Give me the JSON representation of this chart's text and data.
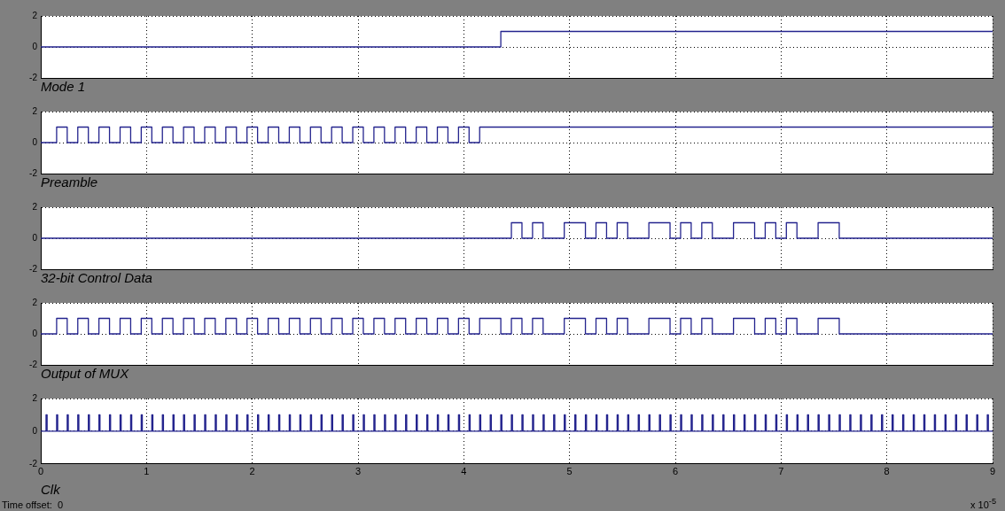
{
  "chart_data": [
    {
      "type": "step",
      "xlabel": "Mode 1",
      "x": [
        0,
        4.35,
        9
      ],
      "values": [
        0,
        1,
        1
      ],
      "color": "#24248e",
      "xlim": [
        0,
        9
      ],
      "xticks": [
        0,
        1,
        2,
        3,
        4,
        5,
        6,
        7,
        8,
        9
      ],
      "ylim": [
        -2,
        2
      ],
      "yticks": [
        -2,
        0,
        2
      ],
      "grid": true,
      "tick_labels": "y"
    },
    {
      "type": "step",
      "xlabel": "Preamble",
      "x": [
        0,
        0.15,
        0.25,
        0.35,
        0.45,
        0.55,
        0.65,
        0.75,
        0.85,
        0.95,
        1.05,
        1.15,
        1.25,
        1.35,
        1.45,
        1.55,
        1.65,
        1.75,
        1.85,
        1.95,
        2.05,
        2.15,
        2.25,
        2.35,
        2.45,
        2.55,
        2.65,
        2.75,
        2.85,
        2.95,
        3.05,
        3.15,
        3.25,
        3.35,
        3.45,
        3.55,
        3.65,
        3.75,
        3.85,
        3.95,
        4.05,
        4.15,
        9
      ],
      "values": [
        0,
        1,
        0,
        1,
        0,
        1,
        0,
        1,
        0,
        1,
        0,
        1,
        0,
        1,
        0,
        1,
        0,
        1,
        0,
        1,
        0,
        1,
        0,
        1,
        0,
        1,
        0,
        1,
        0,
        1,
        0,
        1,
        0,
        1,
        0,
        1,
        0,
        1,
        0,
        1,
        0,
        1,
        1
      ],
      "color": "#24248e",
      "xlim": [
        0,
        9
      ],
      "xticks": [
        0,
        1,
        2,
        3,
        4,
        5,
        6,
        7,
        8,
        9
      ],
      "ylim": [
        -2,
        2
      ],
      "yticks": [
        -2,
        0,
        2
      ],
      "grid": true,
      "tick_labels": "y"
    },
    {
      "type": "step",
      "xlabel": "32-bit Control Data",
      "x": [
        0,
        4.45,
        4.55,
        4.65,
        4.75,
        4.95,
        5.15,
        5.25,
        5.35,
        5.45,
        5.55,
        5.75,
        5.95,
        6.05,
        6.15,
        6.25,
        6.35,
        6.55,
        6.75,
        6.85,
        6.95,
        7.05,
        7.15,
        7.35,
        7.55,
        9
      ],
      "values": [
        0,
        1,
        0,
        1,
        0,
        1,
        0,
        1,
        0,
        1,
        0,
        1,
        0,
        1,
        0,
        1,
        0,
        1,
        0,
        1,
        0,
        1,
        0,
        1,
        0,
        0
      ],
      "color": "#24248e",
      "xlim": [
        0,
        9
      ],
      "xticks": [
        0,
        1,
        2,
        3,
        4,
        5,
        6,
        7,
        8,
        9
      ],
      "ylim": [
        -2,
        2
      ],
      "yticks": [
        -2,
        0,
        2
      ],
      "grid": true,
      "tick_labels": "y"
    },
    {
      "type": "step",
      "xlabel": "Output of MUX",
      "x": [
        0,
        0.15,
        0.25,
        0.35,
        0.45,
        0.55,
        0.65,
        0.75,
        0.85,
        0.95,
        1.05,
        1.15,
        1.25,
        1.35,
        1.45,
        1.55,
        1.65,
        1.75,
        1.85,
        1.95,
        2.05,
        2.15,
        2.25,
        2.35,
        2.45,
        2.55,
        2.65,
        2.75,
        2.85,
        2.95,
        3.05,
        3.15,
        3.25,
        3.35,
        3.45,
        3.55,
        3.65,
        3.75,
        3.85,
        3.95,
        4.05,
        4.15,
        4.35,
        4.45,
        4.55,
        4.65,
        4.75,
        4.95,
        5.15,
        5.25,
        5.35,
        5.45,
        5.55,
        5.75,
        5.95,
        6.05,
        6.15,
        6.25,
        6.35,
        6.55,
        6.75,
        6.85,
        6.95,
        7.05,
        7.15,
        7.35,
        7.55,
        9
      ],
      "values": [
        0,
        1,
        0,
        1,
        0,
        1,
        0,
        1,
        0,
        1,
        0,
        1,
        0,
        1,
        0,
        1,
        0,
        1,
        0,
        1,
        0,
        1,
        0,
        1,
        0,
        1,
        0,
        1,
        0,
        1,
        0,
        1,
        0,
        1,
        0,
        1,
        0,
        1,
        0,
        1,
        0,
        1,
        0,
        1,
        0,
        1,
        0,
        1,
        0,
        1,
        0,
        1,
        0,
        1,
        0,
        1,
        0,
        1,
        0,
        1,
        0,
        1,
        0,
        1,
        0,
        1,
        0,
        0
      ],
      "color": "#24248e",
      "xlim": [
        0,
        9
      ],
      "xticks": [
        0,
        1,
        2,
        3,
        4,
        5,
        6,
        7,
        8,
        9
      ],
      "ylim": [
        -2,
        2
      ],
      "yticks": [
        -2,
        0,
        2
      ],
      "grid": true,
      "tick_labels": "y"
    },
    {
      "type": "step",
      "xlabel": "Clk",
      "annotations": [
        "Time offset:  0",
        "x 10$^{-5}$"
      ],
      "x": [
        0,
        0.05,
        0.06,
        0.15,
        0.16,
        0.25,
        0.26,
        0.35,
        0.36,
        0.45,
        0.46,
        0.55,
        0.56,
        0.65,
        0.66,
        0.75,
        0.76,
        0.85,
        0.86,
        0.95,
        0.96,
        1.05,
        1.06,
        1.15,
        1.16,
        1.25,
        1.26,
        1.35,
        1.36,
        1.45,
        1.46,
        1.55,
        1.56,
        1.65,
        1.66,
        1.75,
        1.76,
        1.85,
        1.86,
        1.95,
        1.96,
        2.05,
        2.06,
        2.15,
        2.16,
        2.25,
        2.26,
        2.35,
        2.36,
        2.45,
        2.46,
        2.55,
        2.56,
        2.65,
        2.66,
        2.75,
        2.76,
        2.85,
        2.86,
        2.95,
        2.96,
        3.05,
        3.06,
        3.15,
        3.16,
        3.25,
        3.26,
        3.35,
        3.36,
        3.45,
        3.46,
        3.55,
        3.56,
        3.65,
        3.66,
        3.75,
        3.76,
        3.85,
        3.86,
        3.95,
        3.96,
        4.05,
        4.06,
        4.15,
        4.16,
        4.25,
        4.26,
        4.35,
        4.36,
        4.45,
        4.46,
        4.55,
        4.56,
        4.65,
        4.66,
        4.75,
        4.76,
        4.85,
        4.86,
        4.95,
        4.96,
        5.05,
        5.06,
        5.15,
        5.16,
        5.25,
        5.26,
        5.35,
        5.36,
        5.45,
        5.46,
        5.55,
        5.56,
        5.65,
        5.66,
        5.75,
        5.76,
        5.85,
        5.86,
        5.95,
        5.96,
        6.05,
        6.06,
        6.15,
        6.16,
        6.25,
        6.26,
        6.35,
        6.36,
        6.45,
        6.46,
        6.55,
        6.56,
        6.65,
        6.66,
        6.75,
        6.76,
        6.85,
        6.86,
        6.95,
        6.96,
        7.05,
        7.06,
        7.15,
        7.16,
        7.25,
        7.26,
        7.35,
        7.36,
        7.45,
        7.46,
        7.55,
        7.56,
        7.65,
        7.66,
        7.75,
        7.76,
        7.85,
        7.86,
        7.95,
        7.96,
        8.05,
        8.06,
        8.15,
        8.16,
        8.25,
        8.26,
        8.35,
        8.36,
        8.45,
        8.46,
        8.55,
        8.56,
        8.65,
        8.66,
        8.75,
        8.76,
        8.85,
        8.86,
        8.95,
        8.96,
        9
      ],
      "values": [
        0,
        1,
        0,
        1,
        0,
        1,
        0,
        1,
        0,
        1,
        0,
        1,
        0,
        1,
        0,
        1,
        0,
        1,
        0,
        1,
        0,
        1,
        0,
        1,
        0,
        1,
        0,
        1,
        0,
        1,
        0,
        1,
        0,
        1,
        0,
        1,
        0,
        1,
        0,
        1,
        0,
        1,
        0,
        1,
        0,
        1,
        0,
        1,
        0,
        1,
        0,
        1,
        0,
        1,
        0,
        1,
        0,
        1,
        0,
        1,
        0,
        1,
        0,
        1,
        0,
        1,
        0,
        1,
        0,
        1,
        0,
        1,
        0,
        1,
        0,
        1,
        0,
        1,
        0,
        1,
        0,
        1,
        0,
        1,
        0,
        1,
        0,
        1,
        0,
        1,
        0,
        1,
        0,
        1,
        0,
        1,
        0,
        1,
        0,
        1,
        0,
        1,
        0,
        1,
        0,
        1,
        0,
        1,
        0,
        1,
        0,
        1,
        0,
        1,
        0,
        1,
        0,
        1,
        0,
        1,
        0,
        1,
        0,
        1,
        0,
        1,
        0,
        1,
        0,
        1,
        0,
        1,
        0,
        1,
        0,
        1,
        0,
        1,
        0,
        1,
        0,
        1,
        0,
        1,
        0,
        1,
        0,
        1,
        0,
        1,
        0,
        1,
        0,
        1,
        0,
        1,
        0,
        1,
        0,
        1,
        0,
        1,
        0,
        1,
        0,
        1,
        0,
        1,
        0,
        1,
        0,
        1,
        0,
        1,
        0,
        1,
        0,
        1,
        0,
        1,
        0,
        0
      ],
      "color": "#24248e",
      "xlim": [
        0,
        9
      ],
      "xticks": [
        0,
        1,
        2,
        3,
        4,
        5,
        6,
        7,
        8,
        9
      ],
      "ylim": [
        -2,
        2
      ],
      "yticks": [
        -2,
        0,
        2
      ],
      "grid": true
    }
  ]
}
